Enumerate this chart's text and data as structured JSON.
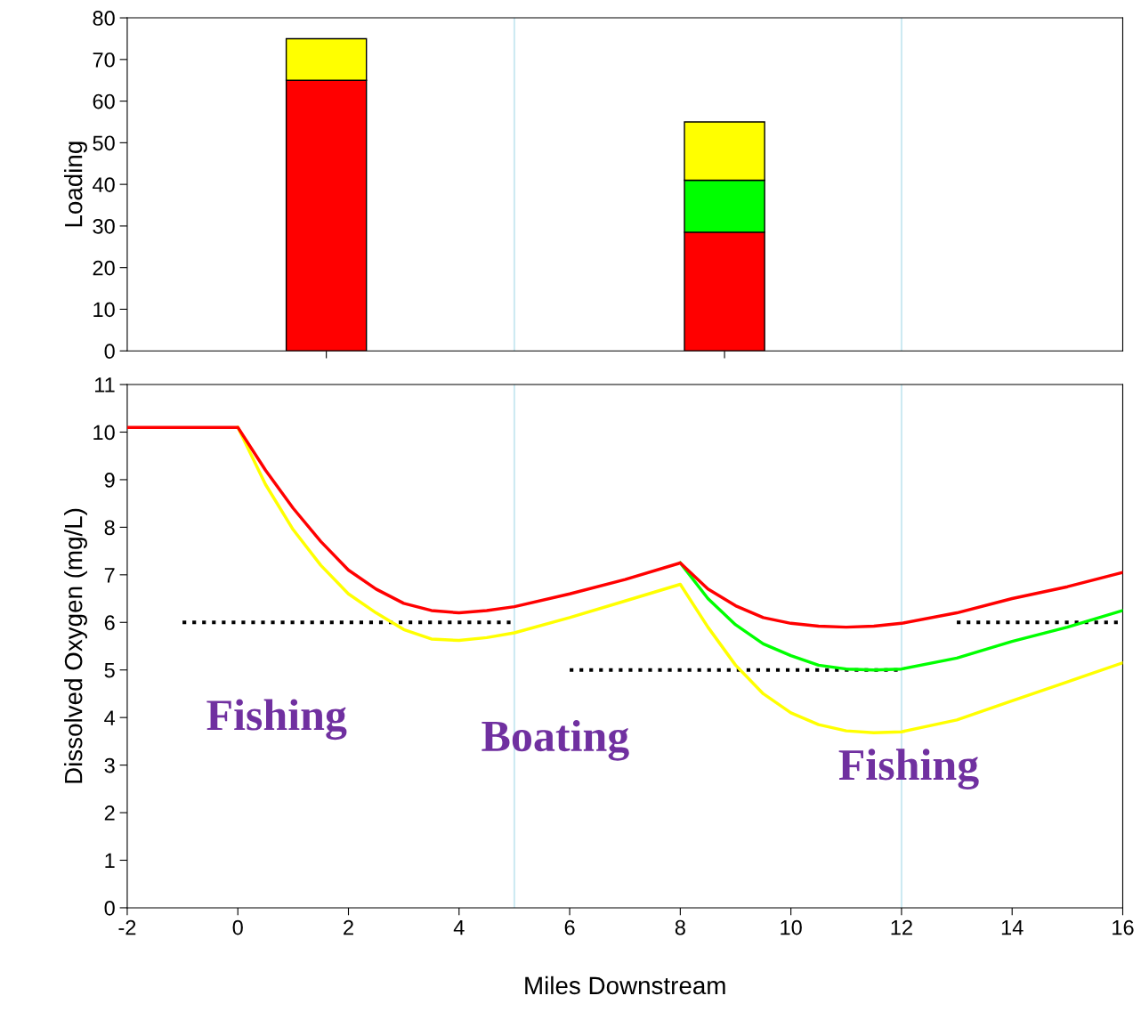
{
  "chart_data": [
    {
      "type": "bar",
      "stacked": true,
      "ylabel": "Loading",
      "x": [
        1.6,
        8.8
      ],
      "xlim": [
        -2,
        16
      ],
      "xticks": [
        {
          "value": 1.6,
          "label": null
        },
        {
          "value": 8.8,
          "label": null
        }
      ],
      "ylim": [
        0,
        80
      ],
      "yticks": [
        0,
        10,
        20,
        30,
        40,
        50,
        60,
        70,
        80
      ],
      "tick_labels": "y",
      "grid": false,
      "legend": false,
      "series": [
        {
          "color": "#ff0000",
          "values": [
            65,
            28.5
          ]
        },
        {
          "color": "#00ff00",
          "values": [
            0,
            12.5
          ]
        },
        {
          "color": "#ffff00",
          "values": [
            10,
            14
          ]
        }
      ],
      "ref_lines": [
        {
          "axis": "x",
          "value": 5,
          "color": "#cdeaf2"
        },
        {
          "axis": "x",
          "value": 12,
          "color": "#cdeaf2"
        }
      ]
    },
    {
      "type": "line",
      "xlabel": "Miles Downstream",
      "ylabel": "Dissolved Oxygen (mg/L)",
      "xlim": [
        -2,
        16
      ],
      "xticks": [
        -2,
        0,
        2,
        4,
        6,
        8,
        10,
        12,
        14,
        16
      ],
      "ylim": [
        0,
        11
      ],
      "yticks": [
        0,
        1,
        2,
        3,
        4,
        5,
        6,
        7,
        8,
        9,
        10,
        11
      ],
      "grid": false,
      "legend": false,
      "marker": "none",
      "series": [
        {
          "color": "#000000",
          "line_style": "dotted",
          "x": [
            -1,
            5,
            5.5,
            6,
            12,
            12.5,
            13,
            16
          ],
          "values": [
            6,
            6,
            null,
            5,
            5,
            null,
            6,
            6
          ]
        },
        {
          "color": "#ffff00",
          "x": [
            0,
            0.5,
            1,
            1.5,
            2,
            2.5,
            3,
            3.5,
            4,
            4.5,
            5,
            6,
            7,
            8,
            8.5,
            9,
            9.5,
            10,
            10.5,
            11,
            11.5,
            12,
            13,
            14,
            15,
            16
          ],
          "values": [
            10.1,
            8.9,
            7.95,
            7.2,
            6.6,
            6.2,
            5.85,
            5.65,
            5.62,
            5.68,
            5.78,
            6.1,
            6.45,
            6.8,
            5.9,
            5.1,
            4.5,
            4.1,
            3.85,
            3.72,
            3.68,
            3.7,
            3.95,
            4.35,
            4.75,
            5.15
          ]
        },
        {
          "color": "#00ff00",
          "x": [
            8,
            8.5,
            9,
            9.5,
            10,
            10.5,
            11,
            11.5,
            12,
            13,
            14,
            15,
            16
          ],
          "values": [
            7.25,
            6.5,
            5.95,
            5.55,
            5.3,
            5.1,
            5.02,
            5.0,
            5.02,
            5.25,
            5.6,
            5.9,
            6.25
          ]
        },
        {
          "color": "#ff0000",
          "x": [
            -2,
            0,
            0.5,
            1,
            1.5,
            2,
            2.5,
            3,
            3.5,
            4,
            4.5,
            5,
            6,
            7,
            8,
            8.5,
            9,
            9.5,
            10,
            10.5,
            11,
            11.5,
            12,
            13,
            14,
            15,
            16
          ],
          "values": [
            10.1,
            10.1,
            9.2,
            8.4,
            7.7,
            7.1,
            6.7,
            6.4,
            6.25,
            6.2,
            6.25,
            6.33,
            6.6,
            6.9,
            7.25,
            6.7,
            6.35,
            6.1,
            5.98,
            5.92,
            5.9,
            5.92,
            5.98,
            6.2,
            6.5,
            6.75,
            7.05
          ]
        }
      ],
      "ref_lines": [
        {
          "axis": "x",
          "value": 5,
          "color": "#cdeaf2"
        },
        {
          "axis": "x",
          "value": 12,
          "color": "#cdeaf2"
        }
      ],
      "annotations": [
        "Fishing",
        "Boating",
        "Fishing"
      ]
    }
  ]
}
